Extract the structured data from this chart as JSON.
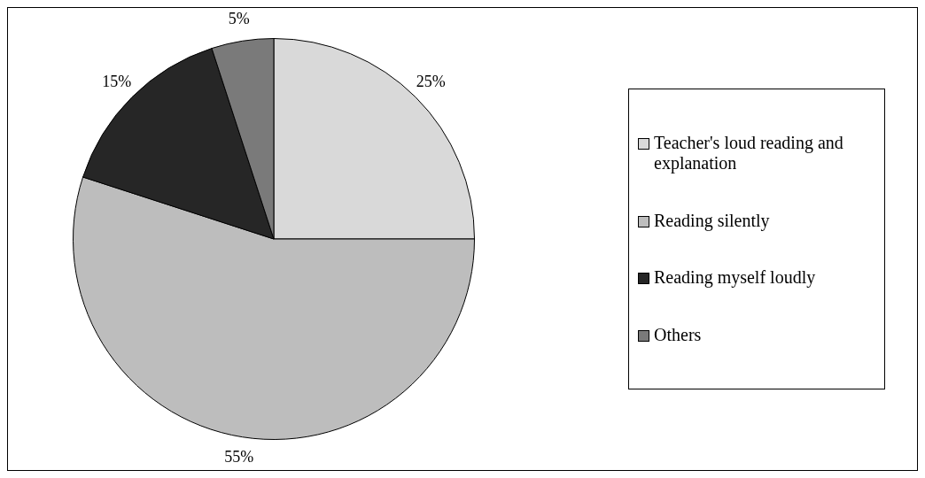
{
  "chart_data": {
    "type": "pie",
    "categories": [
      "Teacher's loud reading and explanation",
      "Reading silently",
      "Reading myself loudly",
      "Others"
    ],
    "values": [
      25,
      55,
      15,
      5
    ],
    "colors": [
      "#d9d9d9",
      "#bdbdbd",
      "#262626",
      "#7a7a7a"
    ],
    "value_labels": [
      "25%",
      "55%",
      "15%",
      "5%"
    ],
    "legend": "right"
  }
}
